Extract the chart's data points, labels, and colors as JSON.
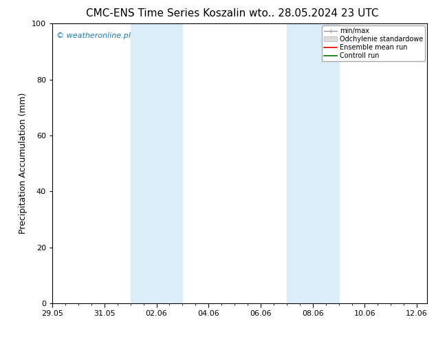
{
  "title_left": "CMC-ENS Time Series Koszalin",
  "title_right": "wto.. 28.05.2024 23 UTC",
  "ylabel": "Precipitation Accumulation (mm)",
  "ylim": [
    0,
    100
  ],
  "yticks": [
    0,
    20,
    40,
    60,
    80,
    100
  ],
  "xtick_labels": [
    "29.05",
    "31.05",
    "02.06",
    "04.06",
    "06.06",
    "08.06",
    "10.06",
    "12.06"
  ],
  "xtick_positions": [
    0,
    2,
    4,
    6,
    8,
    10,
    12,
    14
  ],
  "xlim": [
    0,
    14.4
  ],
  "shaded_bands": [
    {
      "start": 3.0,
      "end": 5.0
    },
    {
      "start": 9.0,
      "end": 11.0
    }
  ],
  "shaded_color": "#daedf8",
  "watermark_text": "© weatheronline.pl",
  "watermark_color": "#1a7abf",
  "legend_entries": [
    {
      "label": "min/max",
      "color": "#999999",
      "style": "errorbar"
    },
    {
      "label": "Odchylenie standardowe",
      "color": "#dddddd",
      "style": "fill"
    },
    {
      "label": "Ensemble mean run",
      "color": "#dd0000",
      "style": "line"
    },
    {
      "label": "Controll run",
      "color": "#007700",
      "style": "line"
    }
  ],
  "bg_color": "#ffffff",
  "plot_bg_color": "#ffffff",
  "title_fontsize": 11,
  "label_fontsize": 9,
  "tick_fontsize": 8,
  "watermark_fontsize": 8,
  "legend_fontsize": 7
}
